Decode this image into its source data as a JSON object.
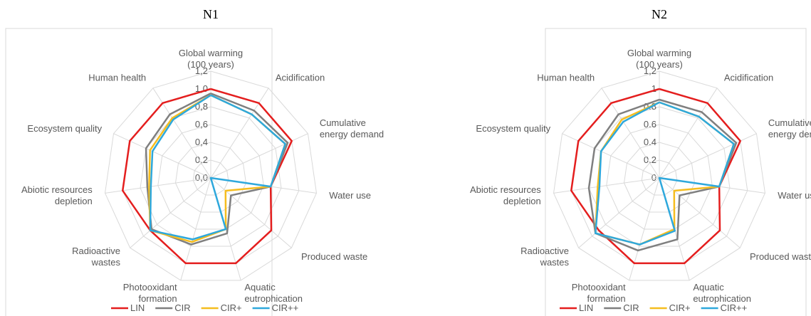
{
  "chart_data": [
    {
      "type": "radar",
      "title": "N1",
      "categories": [
        "Global warming\n(100 years)",
        "Acidification",
        "Cumulative\nenergy demand",
        "Water use",
        "Produced waste",
        "Aquatic\neutrophication",
        "Photooxidant\nformation",
        "Radioactive\nwastes",
        "Abiotic resources\ndepletion",
        "Ecosystem quality",
        "Human health"
      ],
      "ylim": [
        0,
        1.2
      ],
      "yticks": [
        {
          "value": 0,
          "label": "0,0"
        },
        {
          "value": 0.2,
          "label": "0,2"
        },
        {
          "value": 0.4,
          "label": "0,4"
        },
        {
          "value": 0.6,
          "label": "0,6"
        },
        {
          "value": 0.8,
          "label": "0,8"
        },
        {
          "value": 1,
          "label": "1,0"
        },
        {
          "value": 1.2,
          "label": "1,2"
        }
      ],
      "grid": true,
      "legend": "bottom",
      "series": [
        {
          "name": "LIN",
          "color": "#e41e1e",
          "values": [
            1,
            1,
            1,
            0.68,
            0.9,
            1,
            1,
            0.9,
            1,
            1,
            1
          ]
        },
        {
          "name": "CIR",
          "color": "#7f7f7f",
          "values": [
            0.95,
            0.9,
            0.95,
            0.68,
            0.3,
            0.65,
            0.78,
            0.88,
            0.72,
            0.8,
            0.85
          ]
        },
        {
          "name": "CIR+",
          "color": "#f5bd1f",
          "values": [
            0.93,
            0.85,
            0.92,
            0.68,
            0.22,
            0.6,
            0.75,
            0.9,
            0.7,
            0.75,
            0.8
          ]
        },
        {
          "name": "CIR++",
          "color": "#2ea8dc",
          "values": [
            0.93,
            0.85,
            0.92,
            0.68,
            0,
            0.6,
            0.72,
            0.9,
            0.68,
            0.72,
            0.78
          ]
        }
      ]
    },
    {
      "type": "radar",
      "title": "N2",
      "categories": [
        "Global warming\n(100 years)",
        "Acidification",
        "Cumulative\nenergy demand",
        "Water use",
        "Produced waste",
        "Aquatic\neutrophication",
        "Photooxidant\nformation",
        "Radioactive\nwastes",
        "Abiotic resources\ndepletion",
        "Ecosystem quality",
        "Human health"
      ],
      "ylim": [
        0,
        1.2
      ],
      "yticks": [
        0,
        0.2,
        0.4,
        0.6,
        0.8,
        1,
        {
          "value": 1.2,
          "label": "1,2"
        }
      ],
      "grid": true,
      "legend": "bottom",
      "series": [
        {
          "name": "LIN",
          "color": "#e41e1e",
          "values": [
            1,
            1,
            1,
            0.68,
            0.9,
            1,
            1,
            0.9,
            1,
            1,
            1
          ]
        },
        {
          "name": "CIR",
          "color": "#7f7f7f",
          "values": [
            0.88,
            0.88,
            0.95,
            0.68,
            0.3,
            0.72,
            0.85,
            0.95,
            0.8,
            0.8,
            0.85
          ]
        },
        {
          "name": "CIR+",
          "color": "#f5bd1f",
          "values": [
            0.85,
            0.82,
            0.92,
            0.68,
            0.22,
            0.6,
            0.78,
            0.95,
            0.7,
            0.72,
            0.78
          ]
        },
        {
          "name": "CIR++",
          "color": "#2ea8dc",
          "values": [
            0.85,
            0.82,
            0.92,
            0.68,
            0,
            0.62,
            0.78,
            0.95,
            0.68,
            0.72,
            0.75
          ]
        }
      ]
    }
  ]
}
